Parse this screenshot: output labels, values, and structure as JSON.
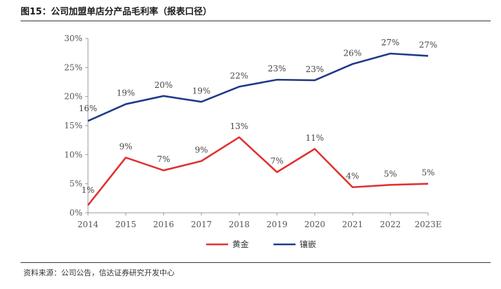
{
  "title": "图15：公司加盟单店分产品毛利率（报表口径）",
  "source": "资料来源：公司公告，信达证券研究开发中心",
  "chart_data": {
    "type": "line",
    "categories": [
      "2014",
      "2015",
      "2016",
      "2017",
      "2018",
      "2019",
      "2020",
      "2021",
      "2022",
      "2023E"
    ],
    "series": [
      {
        "name": "黄金",
        "color": "#e03131",
        "values": [
          1.3,
          9.5,
          7.3,
          8.9,
          13.0,
          7.0,
          11.0,
          4.4,
          4.8,
          5.0
        ],
        "labels": [
          "1%",
          "9%",
          "7%",
          "9%",
          "13%",
          "7%",
          "11%",
          "4%",
          "5%",
          "5%"
        ]
      },
      {
        "name": "镶嵌",
        "color": "#1f3a8a",
        "values": [
          15.8,
          18.7,
          20.1,
          19.1,
          21.7,
          22.9,
          22.8,
          25.6,
          27.4,
          27.0
        ],
        "labels": [
          "16%",
          "19%",
          "20%",
          "19%",
          "22%",
          "23%",
          "23%",
          "26%",
          "27%",
          "27%"
        ]
      }
    ],
    "yticks": [
      "0%",
      "5%",
      "10%",
      "15%",
      "20%",
      "25%",
      "30%"
    ],
    "ylim": [
      0,
      30
    ],
    "legend": "bottom",
    "grid": false
  }
}
